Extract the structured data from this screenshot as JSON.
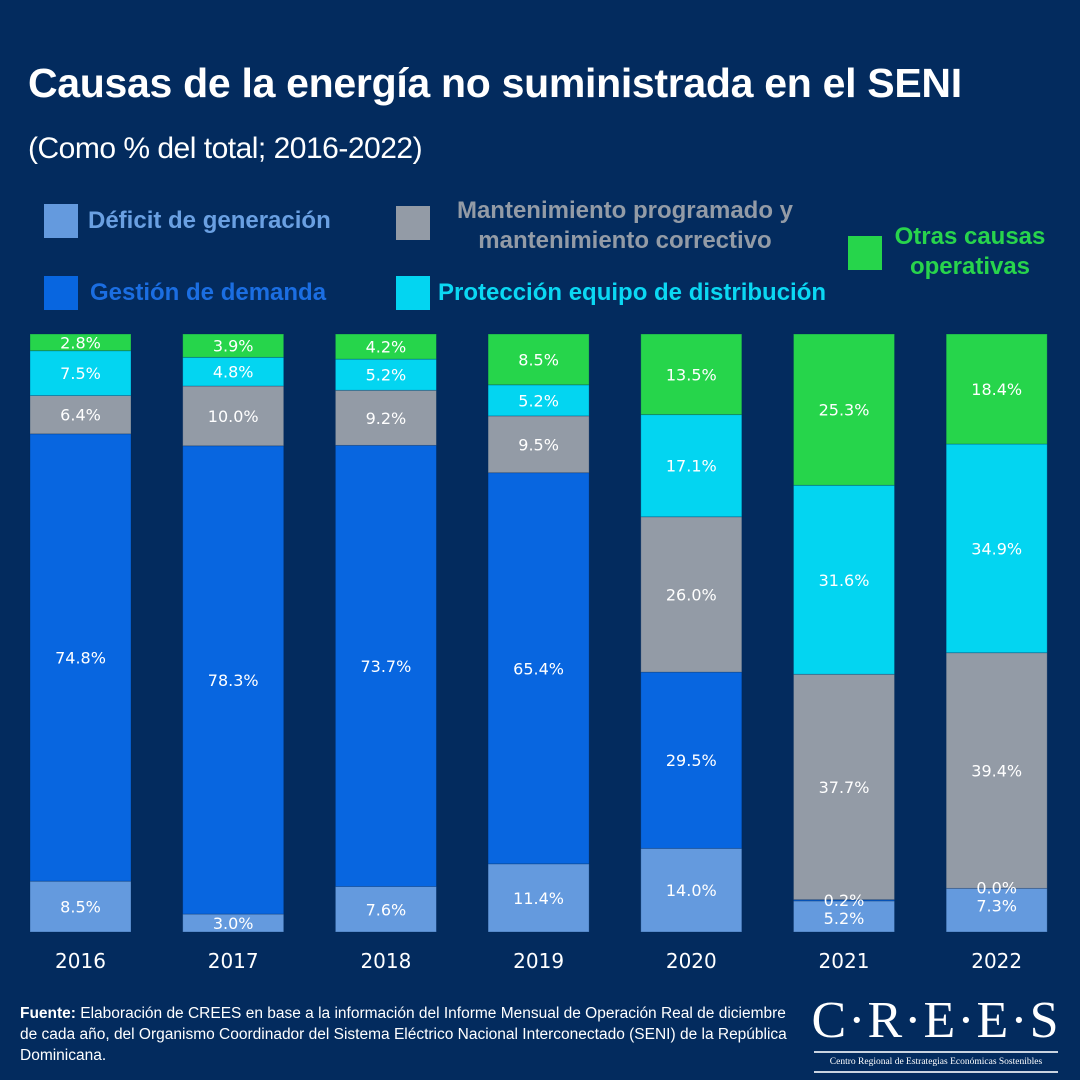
{
  "header": {
    "title": "Causas de la energía no suministrada en el SENI",
    "subtitle": "(Como % del total; 2016-2022)"
  },
  "legend": [
    {
      "label": "Déficit de generación",
      "color": "#649ade"
    },
    {
      "label": "Mantenimiento programado y\nmantenimiento correctivo",
      "color": "#939ba6"
    },
    {
      "label": "Gestión de demanda",
      "color": "#0866e0"
    },
    {
      "label": "Protección equipo de distribución",
      "color": "#03d5f1"
    },
    {
      "label": "Otras causas\noperativas",
      "color": "#26d54b"
    }
  ],
  "chart_data": {
    "type": "bar",
    "stacked": true,
    "title": "Causas de la energía no suministrada en el SENI",
    "subtitle": "(Como % del total; 2016-2022)",
    "xlabel": "",
    "ylabel": "",
    "ylim": [
      0,
      100
    ],
    "grid": false,
    "legend_position": "top",
    "categories": [
      "2016",
      "2017",
      "2018",
      "2019",
      "2020",
      "2021",
      "2022"
    ],
    "series": [
      {
        "name": "Déficit de generación",
        "color": "#649ade",
        "values": [
          8.5,
          3.0,
          7.6,
          11.4,
          14.0,
          5.2,
          7.3
        ],
        "labels": [
          "8.5%",
          "3.0%",
          "7.6%",
          "11.4%",
          "14.0%",
          "5.2%",
          "7.3%"
        ]
      },
      {
        "name": "Gestión de demanda",
        "color": "#0866e0",
        "values": [
          74.8,
          78.3,
          73.7,
          65.4,
          29.5,
          0.2,
          0.0
        ],
        "labels": [
          "74.8%",
          "78.3%",
          "73.7%",
          "65.4%",
          "29.5%",
          "0.2%",
          "0.0%"
        ]
      },
      {
        "name": "Mantenimiento programado y mantenimiento correctivo",
        "color": "#939ba6",
        "values": [
          6.4,
          10.0,
          9.2,
          9.5,
          26.0,
          37.7,
          39.4
        ],
        "labels": [
          "6.4%",
          "10.0%",
          "9.2%",
          "9.5%",
          "26.0%",
          "37.7%",
          "39.4%"
        ]
      },
      {
        "name": "Protección equipo de distribución",
        "color": "#03d5f1",
        "values": [
          7.5,
          4.8,
          5.2,
          5.2,
          17.1,
          31.6,
          34.9
        ],
        "labels": [
          "7.5%",
          "4.8%",
          "5.2%",
          "5.2%",
          "17.1%",
          "31.6%",
          "34.9%"
        ]
      },
      {
        "name": "Otras causas operativas",
        "color": "#26d54b",
        "values": [
          2.8,
          3.9,
          4.2,
          8.5,
          13.5,
          25.3,
          18.4
        ],
        "labels": [
          "2.8%",
          "3.9%",
          "4.2%",
          "8.5%",
          "13.5%",
          "25.3%",
          "18.4%"
        ]
      }
    ]
  },
  "footer": {
    "source_label": "Fuente:",
    "source_text": " Elaboración de CREES en base a la información del Informe Mensual de Operación Real de diciembre de cada año, del Organismo Coordinador del Sistema Eléctrico Nacional Interconectado (SENI) de la República Dominicana.",
    "logo_main": "C·R·E·E·S",
    "logo_sub": "Centro Regional de Estrategias Económicas Sostenibles"
  }
}
